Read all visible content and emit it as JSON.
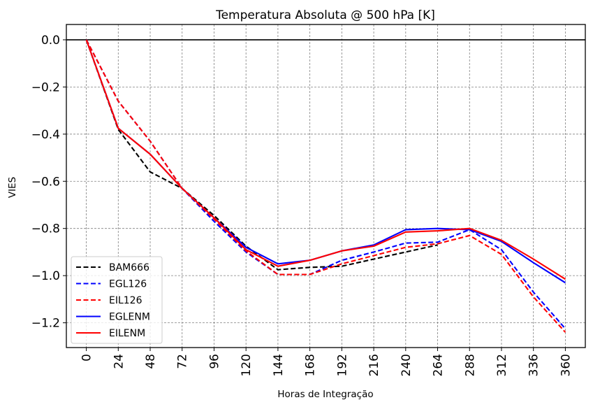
{
  "chart_data": {
    "type": "line",
    "title": "Temperatura Absoluta @ 500 hPa [K]",
    "xlabel": "Horas de Integração",
    "ylabel": "VIES",
    "x": [
      0,
      24,
      48,
      72,
      96,
      120,
      144,
      168,
      192,
      216,
      240,
      264,
      288,
      312,
      336,
      360
    ],
    "xticks": [
      "0",
      "24",
      "48",
      "72",
      "96",
      "120",
      "144",
      "168",
      "192",
      "216",
      "240",
      "264",
      "288",
      "312",
      "336",
      "360"
    ],
    "yticks": [
      "0.0",
      "−0.2",
      "−0.4",
      "−0.6",
      "−0.8",
      "−1.0",
      "−1.2"
    ],
    "ytick_values": [
      0.0,
      -0.2,
      -0.4,
      -0.6,
      -0.8,
      -1.0,
      -1.2
    ],
    "xlim": [
      -15,
      375
    ],
    "ylim": [
      -1.305,
      0.065
    ],
    "grid": true,
    "reference_line_y": 0.0,
    "legend_position": "lower-left",
    "series": [
      {
        "name": "BAM666",
        "color": "#000000",
        "style": "dashed",
        "values": [
          0.0,
          -0.38,
          -0.56,
          -0.63,
          -0.745,
          -0.875,
          -0.975,
          -0.965,
          -0.96,
          -0.93,
          -0.9,
          -0.87,
          null,
          null,
          null,
          null
        ]
      },
      {
        "name": "EGL126",
        "color": "#0000ff",
        "style": "dashed",
        "values": [
          0.0,
          -0.26,
          -0.43,
          -0.63,
          -0.77,
          -0.9,
          -0.995,
          -0.995,
          -0.935,
          -0.9,
          -0.862,
          -0.858,
          -0.805,
          -0.89,
          -1.07,
          -1.225
        ]
      },
      {
        "name": "EIL126",
        "color": "#ff0000",
        "style": "dashed",
        "values": [
          0.0,
          -0.26,
          -0.43,
          -0.63,
          -0.76,
          -0.895,
          -0.995,
          -0.995,
          -0.95,
          -0.915,
          -0.88,
          -0.865,
          -0.83,
          -0.91,
          -1.09,
          -1.24
        ]
      },
      {
        "name": "EGLENM",
        "color": "#0000ff",
        "style": "solid",
        "values": [
          0.0,
          -0.375,
          -0.485,
          -0.63,
          -0.755,
          -0.88,
          -0.95,
          -0.935,
          -0.895,
          -0.87,
          -0.805,
          -0.8,
          -0.805,
          -0.855,
          -0.945,
          -1.03
        ]
      },
      {
        "name": "EILENM",
        "color": "#ff0000",
        "style": "solid",
        "values": [
          0.0,
          -0.375,
          -0.485,
          -0.63,
          -0.755,
          -0.89,
          -0.96,
          -0.935,
          -0.895,
          -0.875,
          -0.815,
          -0.81,
          -0.8,
          -0.85,
          -0.93,
          -1.015
        ]
      }
    ]
  }
}
